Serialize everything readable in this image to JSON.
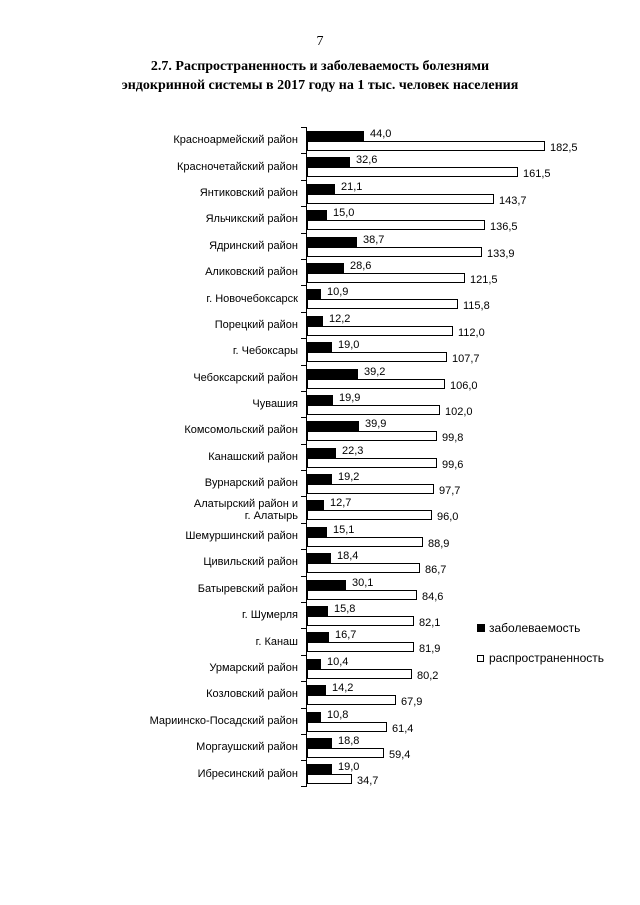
{
  "page": {
    "number": "7"
  },
  "title": {
    "line1": "2.7. Распространенность и заболеваемость болезнями",
    "line2": "эндокринной системы в 2017 году на 1 тыс. человек населения"
  },
  "legend": {
    "items": [
      {
        "label": "заболеваемость",
        "swatch": "filled-black-square"
      },
      {
        "label": "распространенность",
        "swatch": "white-square-black-border"
      }
    ]
  },
  "colors": {
    "incidence_bar": "#000000",
    "prevalence_bar_fill": "#ffffff",
    "prevalence_bar_border": "#000000",
    "text": "#000000",
    "page_background": "#ffffff"
  },
  "chart_data": {
    "type": "bar",
    "orientation": "horizontal",
    "title": "2.7. Распространенность и заболеваемость болезнями эндокринной системы в 2017 году на 1 тыс. человек населения",
    "unit_note": "на 1 тыс. человек населения",
    "decimal_separator": ",",
    "xlim": [
      0,
      190
    ],
    "grid": false,
    "legend_position": "right",
    "value_labels": "shown at end of each bar",
    "categories": [
      "Красноармейский район",
      "Красночетайский район",
      "Янтиковский район",
      "Яльчикский район",
      "Ядринский район",
      "Аликовский район",
      "г. Новочебоксарск",
      "Порецкий район",
      "г. Чебоксары",
      "Чебоксарский район",
      "Чувашия",
      "Комсомольский район",
      "Канашский район",
      "Вурнарский район",
      "Алатырский район и\nг. Алатырь",
      "Шемуршинский район",
      "Цивильский район",
      "Батыревский район",
      "г. Шумерля",
      "г. Канаш",
      "Урмарский район",
      "Козловский район",
      "Мариинско-Посадский район",
      "Моргаушский район",
      "Ибресинский район"
    ],
    "series": [
      {
        "name": "заболеваемость",
        "values": [
          44.0,
          32.6,
          21.1,
          15.0,
          38.7,
          28.6,
          10.9,
          12.2,
          19.0,
          39.2,
          19.9,
          39.9,
          22.3,
          19.2,
          12.7,
          15.1,
          18.4,
          30.1,
          15.8,
          16.7,
          10.4,
          14.2,
          10.8,
          18.8,
          19.0
        ]
      },
      {
        "name": "распространенность",
        "values": [
          182.5,
          161.5,
          143.7,
          136.5,
          133.9,
          121.5,
          115.8,
          112.0,
          107.7,
          106.0,
          102.0,
          99.8,
          99.6,
          97.7,
          96.0,
          88.9,
          86.7,
          84.6,
          82.1,
          81.9,
          80.2,
          67.9,
          61.4,
          59.4,
          34.7
        ]
      }
    ]
  }
}
